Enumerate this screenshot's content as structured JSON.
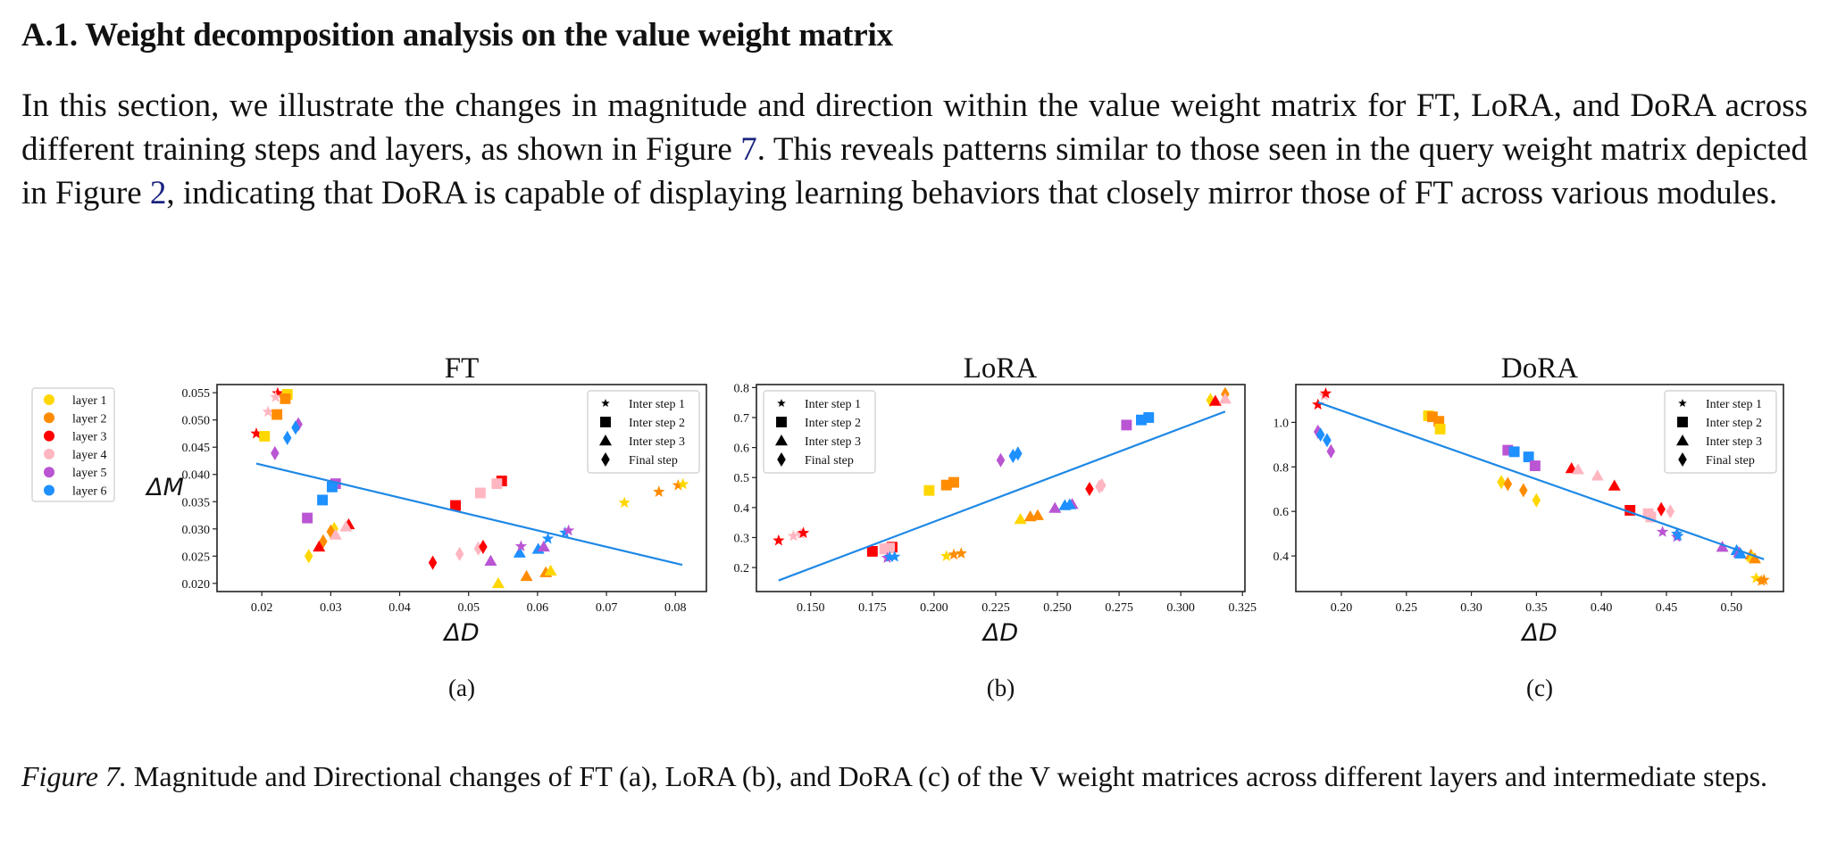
{
  "section": {
    "heading": "A.1. Weight decomposition analysis on the value weight matrix",
    "paragraph": {
      "part1": "In this section, we illustrate the changes in magnitude and direction within the value weight matrix for FT, LoRA, and DoRA across different training steps and layers, as shown in Figure ",
      "ref1": "7",
      "part2": ". This reveals patterns similar to those seen in the query weight matrix depicted in Figure ",
      "ref2": "2",
      "part3": ", indicating that DoRA is capable of displaying learning behaviors that closely mirror those of FT across various modules."
    }
  },
  "figure": {
    "caption_label": "Figure 7.",
    "caption_text": " Magnitude and Directional changes of FT (a), LoRA (b), and DoRA (c) of the V weight matrices across different layers and intermediate steps.",
    "layer_legend": [
      {
        "label": "layer 1",
        "color": "#FFD700"
      },
      {
        "label": "layer 2",
        "color": "#FF8C00"
      },
      {
        "label": "layer 3",
        "color": "#FF0000"
      },
      {
        "label": "layer 4",
        "color": "#FFB6C1"
      },
      {
        "label": "layer 5",
        "color": "#BA55D3"
      },
      {
        "label": "layer 6",
        "color": "#1E90FF"
      }
    ],
    "step_legend": [
      {
        "label": "Inter step 1",
        "marker": "star"
      },
      {
        "label": "Inter step 2",
        "marker": "square"
      },
      {
        "label": "Inter step 3",
        "marker": "triangle"
      },
      {
        "label": "Final step",
        "marker": "diamond"
      }
    ],
    "fit_line_color": "#1E88E5"
  },
  "chart_data": [
    {
      "type": "scatter",
      "title": "FT",
      "sublabel": "(a)",
      "xlabel": "ΔD",
      "ylabel": "ΔM",
      "xlim": [
        0.0135,
        0.0845
      ],
      "ylim": [
        0.0185,
        0.0565
      ],
      "xticks": [
        0.02,
        0.03,
        0.04,
        0.05,
        0.06,
        0.07,
        0.08
      ],
      "xtick_labels": [
        "0.02",
        "0.03",
        "0.04",
        "0.05",
        "0.06",
        "0.07",
        "0.08"
      ],
      "yticks": [
        0.02,
        0.025,
        0.03,
        0.035,
        0.04,
        0.045,
        0.05,
        0.055
      ],
      "ytick_labels": [
        "0.020",
        "0.025",
        "0.030",
        "0.035",
        "0.040",
        "0.045",
        "0.050",
        "0.055"
      ],
      "legend_position": "top-right",
      "fit_line": [
        [
          0.0192,
          0.042
        ],
        [
          0.081,
          0.0234
        ]
      ],
      "points": [
        {
          "layer": 3,
          "step": 1,
          "x": 0.0192,
          "y": 0.0475
        },
        {
          "layer": 3,
          "step": 1,
          "x": 0.0223,
          "y": 0.0549
        },
        {
          "layer": 4,
          "step": 1,
          "x": 0.022,
          "y": 0.0542
        },
        {
          "layer": 4,
          "step": 1,
          "x": 0.0209,
          "y": 0.0515
        },
        {
          "layer": 1,
          "step": 2,
          "x": 0.0237,
          "y": 0.0547
        },
        {
          "layer": 2,
          "step": 2,
          "x": 0.0234,
          "y": 0.0539
        },
        {
          "layer": 2,
          "step": 2,
          "x": 0.0222,
          "y": 0.051
        },
        {
          "layer": 1,
          "step": 2,
          "x": 0.0204,
          "y": 0.047
        },
        {
          "layer": 5,
          "step": 4,
          "x": 0.0253,
          "y": 0.0492
        },
        {
          "layer": 6,
          "step": 4,
          "x": 0.0249,
          "y": 0.0486
        },
        {
          "layer": 6,
          "step": 4,
          "x": 0.0237,
          "y": 0.0467
        },
        {
          "layer": 5,
          "step": 4,
          "x": 0.0219,
          "y": 0.0439
        },
        {
          "layer": 5,
          "step": 2,
          "x": 0.0307,
          "y": 0.0383
        },
        {
          "layer": 6,
          "step": 2,
          "x": 0.0302,
          "y": 0.0377
        },
        {
          "layer": 6,
          "step": 2,
          "x": 0.0288,
          "y": 0.0353
        },
        {
          "layer": 5,
          "step": 2,
          "x": 0.0266,
          "y": 0.032
        },
        {
          "layer": 3,
          "step": 3,
          "x": 0.0326,
          "y": 0.0308
        },
        {
          "layer": 4,
          "step": 3,
          "x": 0.0322,
          "y": 0.0304
        },
        {
          "layer": 1,
          "step": 4,
          "x": 0.0305,
          "y": 0.03
        },
        {
          "layer": 2,
          "step": 4,
          "x": 0.03,
          "y": 0.0295
        },
        {
          "layer": 4,
          "step": 3,
          "x": 0.0307,
          "y": 0.0289
        },
        {
          "layer": 2,
          "step": 4,
          "x": 0.0289,
          "y": 0.0277
        },
        {
          "layer": 3,
          "step": 3,
          "x": 0.0283,
          "y": 0.0267
        },
        {
          "layer": 1,
          "step": 4,
          "x": 0.0268,
          "y": 0.025
        },
        {
          "layer": 3,
          "step": 2,
          "x": 0.0548,
          "y": 0.0388
        },
        {
          "layer": 4,
          "step": 2,
          "x": 0.0541,
          "y": 0.0383
        },
        {
          "layer": 4,
          "step": 2,
          "x": 0.0517,
          "y": 0.0366
        },
        {
          "layer": 3,
          "step": 2,
          "x": 0.0481,
          "y": 0.0343
        },
        {
          "layer": 3,
          "step": 4,
          "x": 0.0448,
          "y": 0.0238
        },
        {
          "layer": 4,
          "step": 4,
          "x": 0.0487,
          "y": 0.0254
        },
        {
          "layer": 4,
          "step": 4,
          "x": 0.0514,
          "y": 0.0264
        },
        {
          "layer": 3,
          "step": 4,
          "x": 0.0521,
          "y": 0.0267
        },
        {
          "layer": 5,
          "step": 3,
          "x": 0.0532,
          "y": 0.0241
        },
        {
          "layer": 1,
          "step": 3,
          "x": 0.0543,
          "y": 0.02
        },
        {
          "layer": 2,
          "step": 3,
          "x": 0.0584,
          "y": 0.0213
        },
        {
          "layer": 2,
          "step": 3,
          "x": 0.0612,
          "y": 0.022
        },
        {
          "layer": 1,
          "step": 3,
          "x": 0.0619,
          "y": 0.0223
        },
        {
          "layer": 6,
          "step": 3,
          "x": 0.0574,
          "y": 0.0256
        },
        {
          "layer": 6,
          "step": 3,
          "x": 0.0601,
          "y": 0.0263
        },
        {
          "layer": 5,
          "step": 3,
          "x": 0.0609,
          "y": 0.0267
        },
        {
          "layer": 5,
          "step": 1,
          "x": 0.0576,
          "y": 0.0268
        },
        {
          "layer": 6,
          "step": 1,
          "x": 0.0615,
          "y": 0.0282
        },
        {
          "layer": 6,
          "step": 1,
          "x": 0.064,
          "y": 0.0293
        },
        {
          "layer": 5,
          "step": 1,
          "x": 0.0645,
          "y": 0.0297
        },
        {
          "layer": 1,
          "step": 1,
          "x": 0.0726,
          "y": 0.0348
        },
        {
          "layer": 2,
          "step": 1,
          "x": 0.0776,
          "y": 0.0368
        },
        {
          "layer": 2,
          "step": 1,
          "x": 0.0804,
          "y": 0.038
        },
        {
          "layer": 1,
          "step": 1,
          "x": 0.0811,
          "y": 0.0382
        }
      ]
    },
    {
      "type": "scatter",
      "title": "LoRA",
      "sublabel": "(b)",
      "xlabel": "ΔD",
      "ylabel": "",
      "xlim": [
        0.128,
        0.326
      ],
      "ylim": [
        0.12,
        0.81
      ],
      "xticks": [
        0.15,
        0.175,
        0.2,
        0.225,
        0.25,
        0.275,
        0.3,
        0.325
      ],
      "xtick_labels": [
        "0.150",
        "0.175",
        "0.200",
        "0.225",
        "0.250",
        "0.275",
        "0.300",
        "0.325"
      ],
      "yticks": [
        0.2,
        0.3,
        0.4,
        0.5,
        0.6,
        0.7,
        0.8
      ],
      "ytick_labels": [
        "0.2",
        "0.3",
        "0.4",
        "0.5",
        "0.6",
        "0.7",
        "0.8"
      ],
      "legend_position": "top-left",
      "fit_line": [
        [
          0.137,
          0.157
        ],
        [
          0.318,
          0.72
        ]
      ],
      "points": [
        {
          "layer": 3,
          "step": 1,
          "x": 0.137,
          "y": 0.29
        },
        {
          "layer": 4,
          "step": 1,
          "x": 0.143,
          "y": 0.305
        },
        {
          "layer": 4,
          "step": 1,
          "x": 0.146,
          "y": 0.312
        },
        {
          "layer": 3,
          "step": 1,
          "x": 0.147,
          "y": 0.315
        },
        {
          "layer": 3,
          "step": 2,
          "x": 0.175,
          "y": 0.254
        },
        {
          "layer": 4,
          "step": 2,
          "x": 0.18,
          "y": 0.262
        },
        {
          "layer": 3,
          "step": 2,
          "x": 0.183,
          "y": 0.268
        },
        {
          "layer": 4,
          "step": 2,
          "x": 0.182,
          "y": 0.265
        },
        {
          "layer": 5,
          "step": 1,
          "x": 0.181,
          "y": 0.232
        },
        {
          "layer": 6,
          "step": 1,
          "x": 0.182,
          "y": 0.235
        },
        {
          "layer": 6,
          "step": 1,
          "x": 0.184,
          "y": 0.236
        },
        {
          "layer": 1,
          "step": 1,
          "x": 0.205,
          "y": 0.238
        },
        {
          "layer": 2,
          "step": 1,
          "x": 0.208,
          "y": 0.243
        },
        {
          "layer": 2,
          "step": 1,
          "x": 0.211,
          "y": 0.247
        },
        {
          "layer": 1,
          "step": 2,
          "x": 0.198,
          "y": 0.457
        },
        {
          "layer": 2,
          "step": 2,
          "x": 0.205,
          "y": 0.475
        },
        {
          "layer": 2,
          "step": 2,
          "x": 0.208,
          "y": 0.484
        },
        {
          "layer": 5,
          "step": 4,
          "x": 0.227,
          "y": 0.558
        },
        {
          "layer": 6,
          "step": 4,
          "x": 0.232,
          "y": 0.572
        },
        {
          "layer": 6,
          "step": 4,
          "x": 0.234,
          "y": 0.58
        },
        {
          "layer": 1,
          "step": 3,
          "x": 0.235,
          "y": 0.361
        },
        {
          "layer": 2,
          "step": 3,
          "x": 0.239,
          "y": 0.37
        },
        {
          "layer": 2,
          "step": 3,
          "x": 0.242,
          "y": 0.374
        },
        {
          "layer": 5,
          "step": 3,
          "x": 0.249,
          "y": 0.398
        },
        {
          "layer": 6,
          "step": 3,
          "x": 0.253,
          "y": 0.407
        },
        {
          "layer": 5,
          "step": 3,
          "x": 0.256,
          "y": 0.411
        },
        {
          "layer": 6,
          "step": 3,
          "x": 0.255,
          "y": 0.41
        },
        {
          "layer": 3,
          "step": 4,
          "x": 0.263,
          "y": 0.462
        },
        {
          "layer": 4,
          "step": 4,
          "x": 0.267,
          "y": 0.47
        },
        {
          "layer": 4,
          "step": 4,
          "x": 0.268,
          "y": 0.474
        },
        {
          "layer": 5,
          "step": 2,
          "x": 0.278,
          "y": 0.675
        },
        {
          "layer": 6,
          "step": 2,
          "x": 0.284,
          "y": 0.692
        },
        {
          "layer": 6,
          "step": 2,
          "x": 0.287,
          "y": 0.7
        },
        {
          "layer": 1,
          "step": 4,
          "x": 0.312,
          "y": 0.758
        },
        {
          "layer": 3,
          "step": 3,
          "x": 0.314,
          "y": 0.755
        },
        {
          "layer": 2,
          "step": 4,
          "x": 0.318,
          "y": 0.778
        },
        {
          "layer": 4,
          "step": 3,
          "x": 0.318,
          "y": 0.762
        }
      ]
    },
    {
      "type": "scatter",
      "title": "DoRA",
      "sublabel": "(c)",
      "xlabel": "ΔD",
      "ylabel": "",
      "xlim": [
        0.165,
        0.54
      ],
      "ylim": [
        0.24,
        1.17
      ],
      "xticks": [
        0.2,
        0.25,
        0.3,
        0.35,
        0.4,
        0.45,
        0.5
      ],
      "xtick_labels": [
        "0.20",
        "0.25",
        "0.30",
        "0.35",
        "0.40",
        "0.45",
        "0.50"
      ],
      "yticks": [
        0.4,
        0.6,
        0.8,
        1.0
      ],
      "ytick_labels": [
        "0.4",
        "0.6",
        "0.8",
        "1.0"
      ],
      "legend_position": "top-right",
      "fit_line": [
        [
          0.182,
          1.09
        ],
        [
          0.525,
          0.385
        ]
      ],
      "points": [
        {
          "layer": 3,
          "step": 1,
          "x": 0.182,
          "y": 1.08
        },
        {
          "layer": 4,
          "step": 1,
          "x": 0.187,
          "y": 1.12
        },
        {
          "layer": 3,
          "step": 1,
          "x": 0.188,
          "y": 1.13
        },
        {
          "layer": 5,
          "step": 4,
          "x": 0.182,
          "y": 0.958
        },
        {
          "layer": 6,
          "step": 4,
          "x": 0.184,
          "y": 0.945
        },
        {
          "layer": 6,
          "step": 4,
          "x": 0.189,
          "y": 0.92
        },
        {
          "layer": 5,
          "step": 4,
          "x": 0.192,
          "y": 0.87
        },
        {
          "layer": 1,
          "step": 2,
          "x": 0.267,
          "y": 1.03
        },
        {
          "layer": 2,
          "step": 2,
          "x": 0.27,
          "y": 1.025
        },
        {
          "layer": 2,
          "step": 2,
          "x": 0.275,
          "y": 1.005
        },
        {
          "layer": 1,
          "step": 2,
          "x": 0.276,
          "y": 0.97
        },
        {
          "layer": 5,
          "step": 2,
          "x": 0.328,
          "y": 0.875
        },
        {
          "layer": 6,
          "step": 2,
          "x": 0.333,
          "y": 0.868
        },
        {
          "layer": 6,
          "step": 2,
          "x": 0.344,
          "y": 0.845
        },
        {
          "layer": 5,
          "step": 2,
          "x": 0.349,
          "y": 0.805
        },
        {
          "layer": 1,
          "step": 4,
          "x": 0.323,
          "y": 0.732
        },
        {
          "layer": 2,
          "step": 4,
          "x": 0.328,
          "y": 0.723
        },
        {
          "layer": 2,
          "step": 4,
          "x": 0.34,
          "y": 0.695
        },
        {
          "layer": 1,
          "step": 4,
          "x": 0.35,
          "y": 0.65
        },
        {
          "layer": 3,
          "step": 3,
          "x": 0.377,
          "y": 0.793
        },
        {
          "layer": 4,
          "step": 3,
          "x": 0.382,
          "y": 0.788
        },
        {
          "layer": 4,
          "step": 3,
          "x": 0.397,
          "y": 0.76
        },
        {
          "layer": 3,
          "step": 3,
          "x": 0.41,
          "y": 0.715
        },
        {
          "layer": 3,
          "step": 2,
          "x": 0.422,
          "y": 0.605
        },
        {
          "layer": 4,
          "step": 2,
          "x": 0.436,
          "y": 0.59
        },
        {
          "layer": 4,
          "step": 2,
          "x": 0.438,
          "y": 0.575
        },
        {
          "layer": 3,
          "step": 4,
          "x": 0.446,
          "y": 0.61
        },
        {
          "layer": 4,
          "step": 4,
          "x": 0.453,
          "y": 0.6
        },
        {
          "layer": 5,
          "step": 1,
          "x": 0.447,
          "y": 0.508
        },
        {
          "layer": 6,
          "step": 1,
          "x": 0.458,
          "y": 0.5
        },
        {
          "layer": 5,
          "step": 1,
          "x": 0.458,
          "y": 0.485
        },
        {
          "layer": 6,
          "step": 1,
          "x": 0.459,
          "y": 0.49
        },
        {
          "layer": 5,
          "step": 3,
          "x": 0.493,
          "y": 0.44
        },
        {
          "layer": 6,
          "step": 3,
          "x": 0.504,
          "y": 0.425
        },
        {
          "layer": 5,
          "step": 3,
          "x": 0.506,
          "y": 0.415
        },
        {
          "layer": 6,
          "step": 3,
          "x": 0.507,
          "y": 0.41
        },
        {
          "layer": 2,
          "step": 3,
          "x": 0.515,
          "y": 0.405
        },
        {
          "layer": 1,
          "step": 3,
          "x": 0.516,
          "y": 0.395
        },
        {
          "layer": 2,
          "step": 3,
          "x": 0.518,
          "y": 0.388
        },
        {
          "layer": 1,
          "step": 1,
          "x": 0.519,
          "y": 0.3
        },
        {
          "layer": 2,
          "step": 1,
          "x": 0.523,
          "y": 0.288
        },
        {
          "layer": 2,
          "step": 1,
          "x": 0.525,
          "y": 0.292
        }
      ]
    }
  ]
}
